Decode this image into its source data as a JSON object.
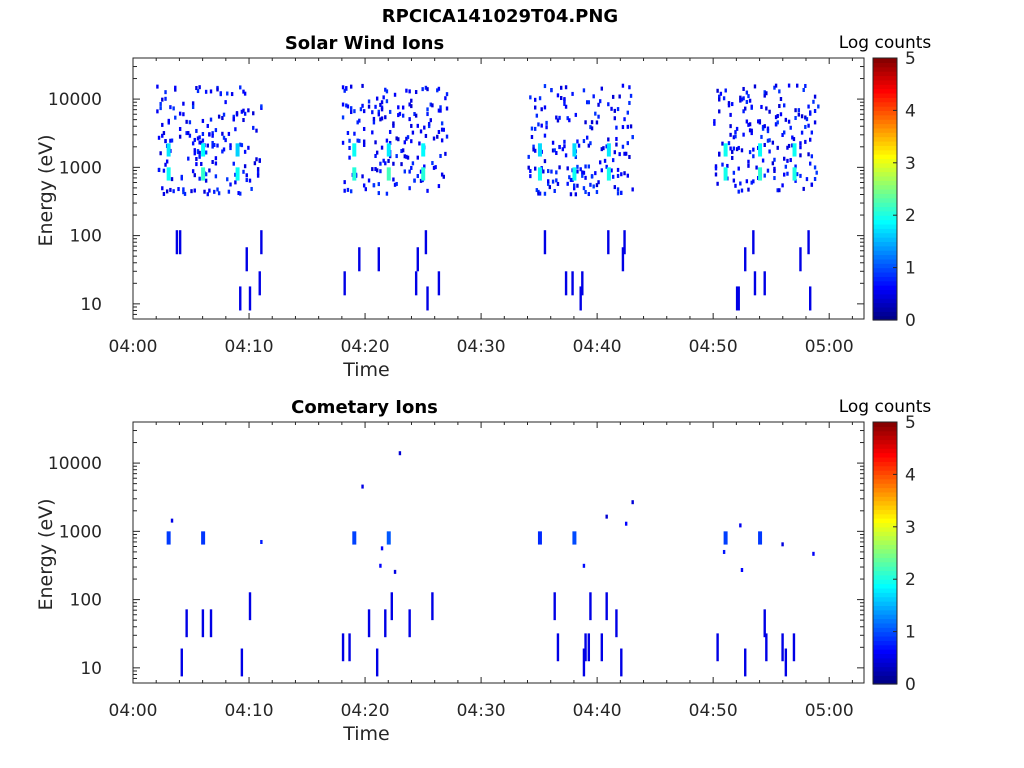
{
  "figure": {
    "filename": "RPCICA141029T04.PNG"
  },
  "colorbar": {
    "label": "Log counts",
    "ticks": [
      "0",
      "1",
      "2",
      "3",
      "4",
      "5"
    ],
    "range": [
      0,
      5
    ],
    "colormap": "jet"
  },
  "chart_data": [
    {
      "type": "heatmap",
      "title": "Solar Wind Ions",
      "xlabel": "Time",
      "ylabel": "Energy (eV)",
      "xticks": [
        "04:00",
        "04:10",
        "04:20",
        "04:30",
        "04:40",
        "04:50",
        "05:00"
      ],
      "yticks": [
        "10",
        "100",
        "1000",
        "10000"
      ],
      "y_scale": "log",
      "xlim": [
        "04:00",
        "05:03"
      ],
      "ylim": [
        6,
        40000
      ],
      "clim": [
        0,
        5
      ],
      "bursts": [
        {
          "start": "04:02",
          "end": "04:11",
          "peaks_eV": [
            800,
            1800
          ],
          "max_log_counts": 2.2
        },
        {
          "start": "04:18",
          "end": "04:27",
          "peaks_eV": [
            800,
            1800
          ],
          "max_log_counts": 2.2
        },
        {
          "start": "04:34",
          "end": "04:43",
          "peaks_eV": [
            800,
            1800
          ],
          "max_log_counts": 2.2
        },
        {
          "start": "04:50",
          "end": "04:59",
          "peaks_eV": [
            800,
            1800
          ],
          "max_log_counts": 2.2
        }
      ]
    },
    {
      "type": "heatmap",
      "title": "Cometary Ions",
      "xlabel": "Time",
      "ylabel": "Energy (eV)",
      "xticks": [
        "04:00",
        "04:10",
        "04:20",
        "04:30",
        "04:40",
        "04:50",
        "05:00"
      ],
      "yticks": [
        "10",
        "100",
        "1000",
        "10000"
      ],
      "y_scale": "log",
      "xlim": [
        "04:00",
        "05:03"
      ],
      "ylim": [
        6,
        40000
      ],
      "clim": [
        0,
        5
      ],
      "bursts": [
        {
          "start": "04:02",
          "end": "04:11",
          "peaks_eV": [
            800
          ],
          "max_log_counts": 1.0
        },
        {
          "start": "04:18",
          "end": "04:27",
          "peaks_eV": [
            800
          ],
          "max_log_counts": 1.0
        },
        {
          "start": "04:34",
          "end": "04:43",
          "peaks_eV": [
            800
          ],
          "max_log_counts": 1.0
        },
        {
          "start": "04:50",
          "end": "04:59",
          "peaks_eV": [
            800
          ],
          "max_log_counts": 1.5
        }
      ]
    }
  ]
}
